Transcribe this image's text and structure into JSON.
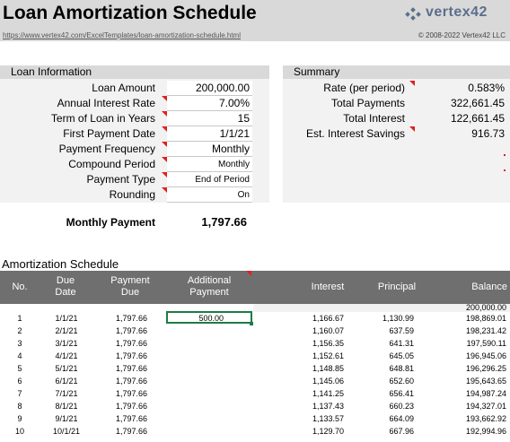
{
  "header": {
    "title": "Loan Amortization Schedule",
    "logo_text": "vertex42",
    "url": "https://www.vertex42.com/ExcelTemplates/loan-amortization-schedule.html",
    "copyright": "© 2008-2022 Vertex42 LLC"
  },
  "loan_info": {
    "heading": "Loan Information",
    "fields": [
      {
        "label": "Loan Amount",
        "value": "200,000.00"
      },
      {
        "label": "Annual Interest Rate",
        "value": "7.00%"
      },
      {
        "label": "Term of Loan in Years",
        "value": "15"
      },
      {
        "label": "First Payment Date",
        "value": "1/1/21"
      },
      {
        "label": "Payment Frequency",
        "value": "Monthly"
      },
      {
        "label": "Compound Period",
        "value": "Monthly"
      },
      {
        "label": "Payment Type",
        "value": "End of Period"
      },
      {
        "label": "Rounding",
        "value": "On"
      }
    ],
    "monthly_payment_label": "Monthly Payment",
    "monthly_payment_value": "1,797.66"
  },
  "summary": {
    "heading": "Summary",
    "fields": [
      {
        "label": "Rate (per period)",
        "value": "0.583%"
      },
      {
        "label": "Total Payments",
        "value": "322,661.45"
      },
      {
        "label": "Total Interest",
        "value": "122,661.45"
      },
      {
        "label": "Est. Interest Savings",
        "value": "916.73"
      }
    ]
  },
  "schedule": {
    "heading": "Amortization Schedule",
    "columns": {
      "no": "No.",
      "due_date_1": "Due",
      "due_date_2": "Date",
      "payment_due_1": "Payment",
      "payment_due_2": "Due",
      "additional_1": "Additional",
      "additional_2": "Payment",
      "interest": "Interest",
      "principal": "Principal",
      "balance": "Balance"
    },
    "opening_balance": "200,000.00",
    "rows": [
      {
        "no": "1",
        "date": "1/1/21",
        "payment": "1,797.66",
        "additional": "500.00",
        "interest": "1,166.67",
        "principal": "1,130.99",
        "balance": "198,869.01"
      },
      {
        "no": "2",
        "date": "2/1/21",
        "payment": "1,797.66",
        "additional": "",
        "interest": "1,160.07",
        "principal": "637.59",
        "balance": "198,231.42"
      },
      {
        "no": "3",
        "date": "3/1/21",
        "payment": "1,797.66",
        "additional": "",
        "interest": "1,156.35",
        "principal": "641.31",
        "balance": "197,590.11"
      },
      {
        "no": "4",
        "date": "4/1/21",
        "payment": "1,797.66",
        "additional": "",
        "interest": "1,152.61",
        "principal": "645.05",
        "balance": "196,945.06"
      },
      {
        "no": "5",
        "date": "5/1/21",
        "payment": "1,797.66",
        "additional": "",
        "interest": "1,148.85",
        "principal": "648.81",
        "balance": "196,296.25"
      },
      {
        "no": "6",
        "date": "6/1/21",
        "payment": "1,797.66",
        "additional": "",
        "interest": "1,145.06",
        "principal": "652.60",
        "balance": "195,643.65"
      },
      {
        "no": "7",
        "date": "7/1/21",
        "payment": "1,797.66",
        "additional": "",
        "interest": "1,141.25",
        "principal": "656.41",
        "balance": "194,987.24"
      },
      {
        "no": "8",
        "date": "8/1/21",
        "payment": "1,797.66",
        "additional": "",
        "interest": "1,137.43",
        "principal": "660.23",
        "balance": "194,327.01"
      },
      {
        "no": "9",
        "date": "9/1/21",
        "payment": "1,797.66",
        "additional": "",
        "interest": "1,133.57",
        "principal": "664.09",
        "balance": "193,662.92"
      },
      {
        "no": "10",
        "date": "10/1/21",
        "payment": "1,797.66",
        "additional": "",
        "interest": "1,129.70",
        "principal": "667.96",
        "balance": "192,994.96"
      }
    ]
  }
}
